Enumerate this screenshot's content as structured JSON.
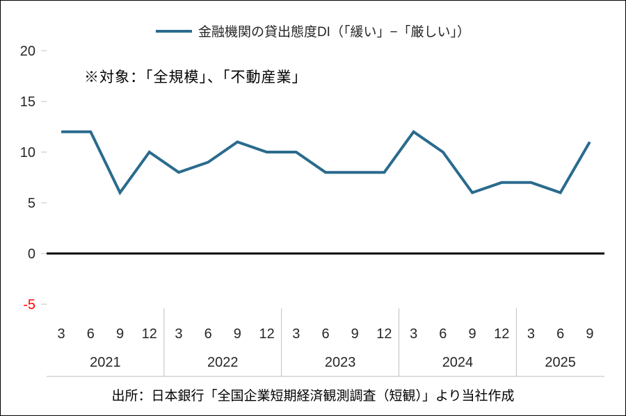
{
  "chart_data": {
    "type": "line",
    "legend": "金融機関の貸出態度DI（「緩い」−「厳しい」）",
    "annotation": "※対象：「全規模」、「不動産業」",
    "source": "出所：日本銀行「全国企業短期経済観測調査（短観）」より当社作成",
    "line_color": "#2a6b8d",
    "axis_text_color": "#262626",
    "negative_tick_color": "#ff0000",
    "grid_color": "#bfbfbf",
    "ylim": [
      -5,
      20
    ],
    "yticks": [
      20,
      15,
      10,
      5,
      0,
      -5
    ],
    "xlabel": "",
    "ylabel": "",
    "groups": [
      {
        "year": "2021",
        "months": [
          "3",
          "6",
          "9",
          "12"
        ],
        "values": [
          12,
          12,
          6,
          10
        ]
      },
      {
        "year": "2022",
        "months": [
          "3",
          "6",
          "9",
          "12"
        ],
        "values": [
          8,
          9,
          11,
          10
        ]
      },
      {
        "year": "2023",
        "months": [
          "3",
          "6",
          "9",
          "12"
        ],
        "values": [
          10,
          8,
          8,
          8
        ]
      },
      {
        "year": "2024",
        "months": [
          "3",
          "6",
          "9",
          "12"
        ],
        "values": [
          12,
          10,
          6,
          7
        ]
      },
      {
        "year": "2025",
        "months": [
          "3",
          "6",
          "9"
        ],
        "values": [
          7,
          6,
          11
        ]
      }
    ]
  }
}
